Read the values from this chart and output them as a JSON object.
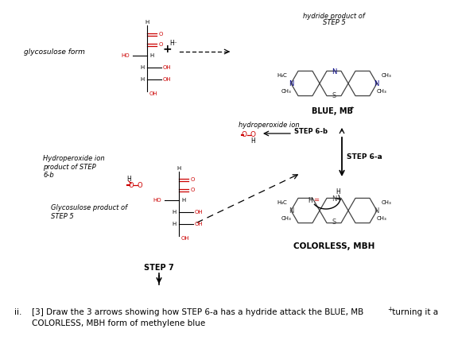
{
  "background_color": "#ffffff",
  "text_color": "#000000",
  "red_color": "#cc0000",
  "dark_gray": "#444444",
  "blue_n_color": "#000080",
  "figsize": [
    5.71,
    4.43
  ],
  "dpi": 100,
  "label_glycosulose_form": "glycosulose form",
  "label_hydroperoxide_product": "Hydroperoxide ion\nproduct of STEP\n6-b",
  "label_glycosulose_product": "Glycosulose product of\nSTEP 5",
  "label_step7": "STEP 7",
  "label_hydride_product": "hydride product of\nSTEP 5",
  "label_blue_mb": "BLUE, MB",
  "label_colorless_mbh": "COLORLESS, MBH",
  "label_hydroperoxide_ion": "hydroperoxide ion",
  "label_step6b": "STEP 6-b",
  "label_step6a": "STEP 6-a",
  "bottom_line1": "ii.    [3] Draw the 3 arrows showing how STEP 6-a has a hydride attack the BLUE, MB",
  "bottom_line1_super": "+",
  "bottom_line1_end": " turning it a",
  "bottom_line2": "        COLORLESS, MBH form of methylene blue"
}
